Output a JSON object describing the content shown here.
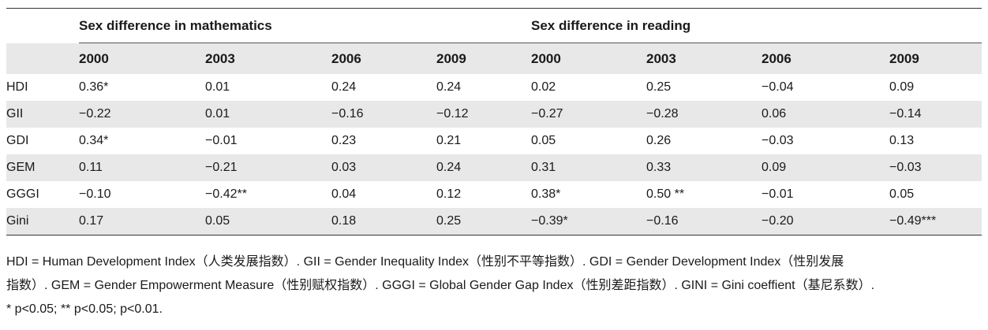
{
  "table": {
    "group_math": "Sex difference in mathematics",
    "group_reading": "Sex difference in reading",
    "years": [
      "2000",
      "2003",
      "2006",
      "2009",
      "2000",
      "2003",
      "2006",
      "2009"
    ],
    "rows": [
      {
        "label": "HDI",
        "values": [
          "0.36*",
          "0.01",
          "0.24",
          "0.24",
          "0.02",
          "0.25",
          "−0.04",
          "0.09"
        ]
      },
      {
        "label": "GII",
        "values": [
          "−0.22",
          "0.01",
          "−0.16",
          "−0.12",
          "−0.27",
          "−0.28",
          "0.06",
          "−0.14"
        ]
      },
      {
        "label": "GDI",
        "values": [
          "0.34*",
          "−0.01",
          "0.23",
          "0.21",
          "0.05",
          "0.26",
          "−0.03",
          "0.13"
        ]
      },
      {
        "label": "GEM",
        "values": [
          "0.11",
          "−0.21",
          "0.03",
          "0.24",
          "0.31",
          "0.33",
          "0.09",
          "−0.03"
        ]
      },
      {
        "label": "GGGI",
        "values": [
          "−0.10",
          "−0.42**",
          "0.04",
          "0.12",
          "0.38*",
          "0.50 **",
          "−0.01",
          "0.05"
        ]
      },
      {
        "label": "Gini",
        "values": [
          "0.17",
          "0.05",
          "0.18",
          "0.25",
          "−0.39*",
          "−0.16",
          "−0.20",
          "−0.49***"
        ]
      }
    ]
  },
  "notes": {
    "line1": "HDI = Human Development Index（人类发展指数）. GII = Gender Inequality Index（性别不平等指数）. GDI = Gender Development Index（性别发展",
    "line2": "指数）. GEM = Gender Empowerment Measure（性别赋权指数）. GGGI = Global Gender Gap Index（性别差距指数）. GINI = Gini coeffient（基尼系数）.",
    "line3": "* p<0.05; ** p<0.05; p<0.01."
  }
}
